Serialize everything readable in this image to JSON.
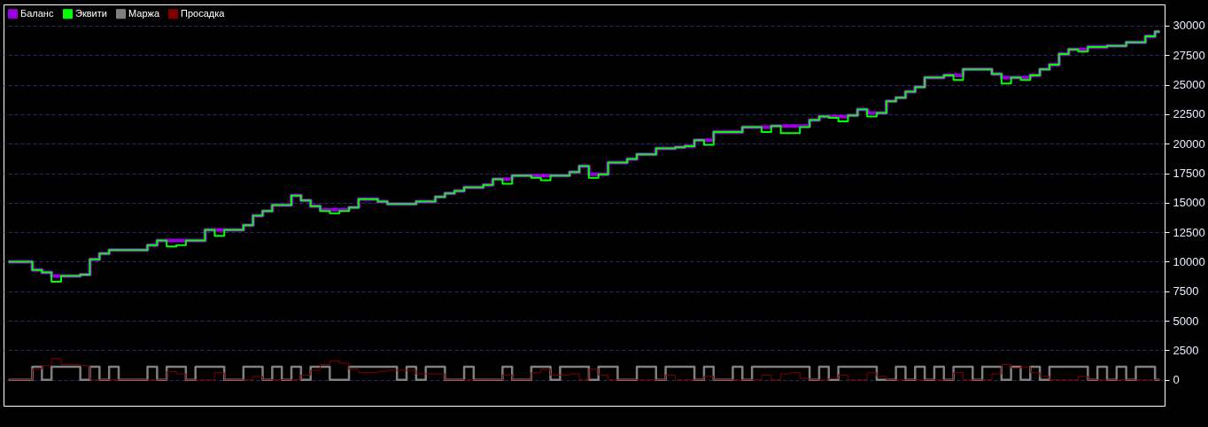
{
  "chart_data": {
    "type": "step",
    "categories": [
      null,
      null,
      null,
      null,
      null,
      null,
      null,
      null,
      null,
      null,
      null,
      null,
      null,
      null,
      null,
      null,
      null,
      null,
      null,
      null,
      null,
      null,
      null,
      null,
      null,
      null,
      null,
      null,
      null,
      null,
      null,
      null,
      null,
      null,
      null,
      null,
      null,
      null,
      null,
      null,
      null,
      null,
      null,
      null,
      null,
      null,
      null,
      null,
      null,
      null,
      null,
      null,
      null,
      null,
      null,
      null,
      null,
      null,
      null,
      null,
      null,
      null,
      null,
      null,
      null,
      null,
      null,
      null,
      null,
      null,
      null,
      null,
      null,
      null,
      null,
      null,
      null,
      null,
      null,
      null,
      null,
      null,
      null,
      null,
      null,
      null,
      null,
      null,
      null,
      null,
      null,
      null,
      null,
      null,
      null,
      null,
      null,
      null,
      null,
      null,
      null,
      null,
      null,
      null,
      null,
      null,
      null,
      null,
      null,
      null,
      null,
      null,
      null,
      null,
      null,
      null,
      null,
      null,
      null,
      null,
      null
    ],
    "series": [
      {
        "name": "Баланс",
        "color": "#9900dd",
        "values": [
          10000,
          10000,
          10000,
          9300,
          9100,
          8800,
          8800,
          8800,
          8900,
          10200,
          10700,
          11000,
          11000,
          11000,
          11000,
          11400,
          11800,
          11800,
          11800,
          11800,
          11800,
          12700,
          12700,
          12700,
          12700,
          13100,
          13900,
          14300,
          14800,
          14800,
          15600,
          15200,
          14700,
          14400,
          14400,
          14400,
          14600,
          15300,
          15300,
          15100,
          14900,
          14900,
          14900,
          15100,
          15100,
          15500,
          15800,
          16000,
          16300,
          16300,
          16500,
          17000,
          17000,
          17300,
          17300,
          17300,
          17300,
          17300,
          17300,
          17600,
          18100,
          17400,
          17400,
          18400,
          18400,
          18700,
          19100,
          19100,
          19600,
          19600,
          19700,
          19800,
          20300,
          20300,
          21000,
          21000,
          21000,
          21400,
          21400,
          21400,
          21500,
          21500,
          21500,
          21500,
          22000,
          22300,
          22300,
          22300,
          22400,
          22900,
          22600,
          22600,
          23600,
          23900,
          24400,
          24800,
          25600,
          25600,
          25800,
          25800,
          26300,
          26300,
          26300,
          25900,
          25600,
          25600,
          25600,
          25800,
          26300,
          26700,
          27600,
          28000,
          28000,
          28200,
          28200,
          28300,
          28300,
          28600,
          28600,
          29100,
          29500
        ]
      },
      {
        "name": "Эквити",
        "color": "#00ff00",
        "values": [
          10000,
          10000,
          10000,
          9300,
          9100,
          8300,
          8800,
          8800,
          8900,
          10200,
          10700,
          11000,
          11000,
          11000,
          11000,
          11400,
          11800,
          11300,
          11400,
          11800,
          11800,
          12700,
          12200,
          12700,
          12700,
          13100,
          13900,
          14300,
          14800,
          14800,
          15600,
          15200,
          14700,
          14300,
          14100,
          14300,
          14600,
          15300,
          15300,
          15100,
          14900,
          14900,
          14900,
          15100,
          15100,
          15500,
          15800,
          16000,
          16300,
          16300,
          16500,
          17000,
          16600,
          17300,
          17300,
          17100,
          16900,
          17300,
          17300,
          17600,
          18100,
          17100,
          17400,
          18400,
          18400,
          18700,
          19100,
          19100,
          19600,
          19600,
          19700,
          19800,
          20300,
          19900,
          21000,
          21000,
          21000,
          21400,
          21400,
          21000,
          21500,
          20900,
          20900,
          21400,
          22000,
          22300,
          22200,
          21900,
          22400,
          22900,
          22300,
          22600,
          23600,
          23900,
          24400,
          24800,
          25600,
          25600,
          25800,
          25400,
          26300,
          26300,
          26300,
          25900,
          25100,
          25600,
          25400,
          25800,
          26300,
          26700,
          27600,
          28000,
          27800,
          28200,
          28200,
          28300,
          28300,
          28600,
          28600,
          29100,
          29500
        ]
      },
      {
        "name": "Маржа",
        "color": "#808080",
        "values": [
          0,
          0,
          0,
          1100,
          0,
          1100,
          1100,
          1100,
          0,
          1100,
          0,
          1100,
          0,
          0,
          0,
          1100,
          0,
          1100,
          1100,
          0,
          1100,
          1100,
          1100,
          0,
          0,
          1100,
          1100,
          0,
          1100,
          0,
          1100,
          0,
          1100,
          1100,
          0,
          0,
          1100,
          1100,
          1100,
          1100,
          1100,
          0,
          1100,
          0,
          1100,
          1100,
          0,
          0,
          1100,
          0,
          0,
          0,
          1100,
          0,
          0,
          1100,
          1100,
          0,
          1100,
          1100,
          1100,
          0,
          1100,
          1100,
          0,
          0,
          1100,
          1100,
          0,
          1100,
          1100,
          1100,
          0,
          1100,
          0,
          0,
          1100,
          0,
          1100,
          1100,
          1100,
          1100,
          1100,
          1100,
          0,
          1100,
          0,
          1100,
          1100,
          1100,
          1100,
          0,
          0,
          1100,
          0,
          1100,
          0,
          1100,
          0,
          1100,
          1100,
          0,
          1100,
          1100,
          0,
          1100,
          0,
          1100,
          0,
          1100,
          1100,
          1100,
          1100,
          0,
          1100,
          0,
          1100,
          0,
          1100,
          1100,
          0
        ]
      },
      {
        "name": "Просадка",
        "color": "#800000",
        "values": [
          0,
          0,
          0,
          900,
          1200,
          1800,
          1300,
          1300,
          1200,
          0,
          0,
          0,
          0,
          0,
          0,
          0,
          0,
          700,
          500,
          0,
          0,
          0,
          600,
          0,
          0,
          0,
          300,
          0,
          0,
          0,
          0,
          400,
          800,
          1300,
          1600,
          1400,
          900,
          600,
          600,
          700,
          800,
          800,
          800,
          500,
          500,
          500,
          0,
          0,
          0,
          0,
          0,
          0,
          400,
          0,
          0,
          600,
          900,
          400,
          400,
          500,
          0,
          900,
          400,
          0,
          0,
          0,
          0,
          0,
          0,
          400,
          0,
          0,
          0,
          300,
          0,
          0,
          0,
          0,
          0,
          400,
          0,
          500,
          600,
          100,
          0,
          0,
          100,
          400,
          0,
          0,
          600,
          300,
          0,
          0,
          0,
          0,
          0,
          0,
          0,
          600,
          0,
          0,
          0,
          500,
          1300,
          1000,
          1100,
          600,
          300,
          0,
          0,
          0,
          300,
          0,
          0,
          0,
          0,
          0,
          0,
          0,
          0
        ]
      }
    ],
    "ylim": [
      -2200,
      31800
    ],
    "yticks": [
      0,
      2500,
      5000,
      7500,
      10000,
      12500,
      15000,
      17500,
      20000,
      22500,
      25000,
      27500,
      30000
    ],
    "grid": "y",
    "legend": "top left"
  }
}
